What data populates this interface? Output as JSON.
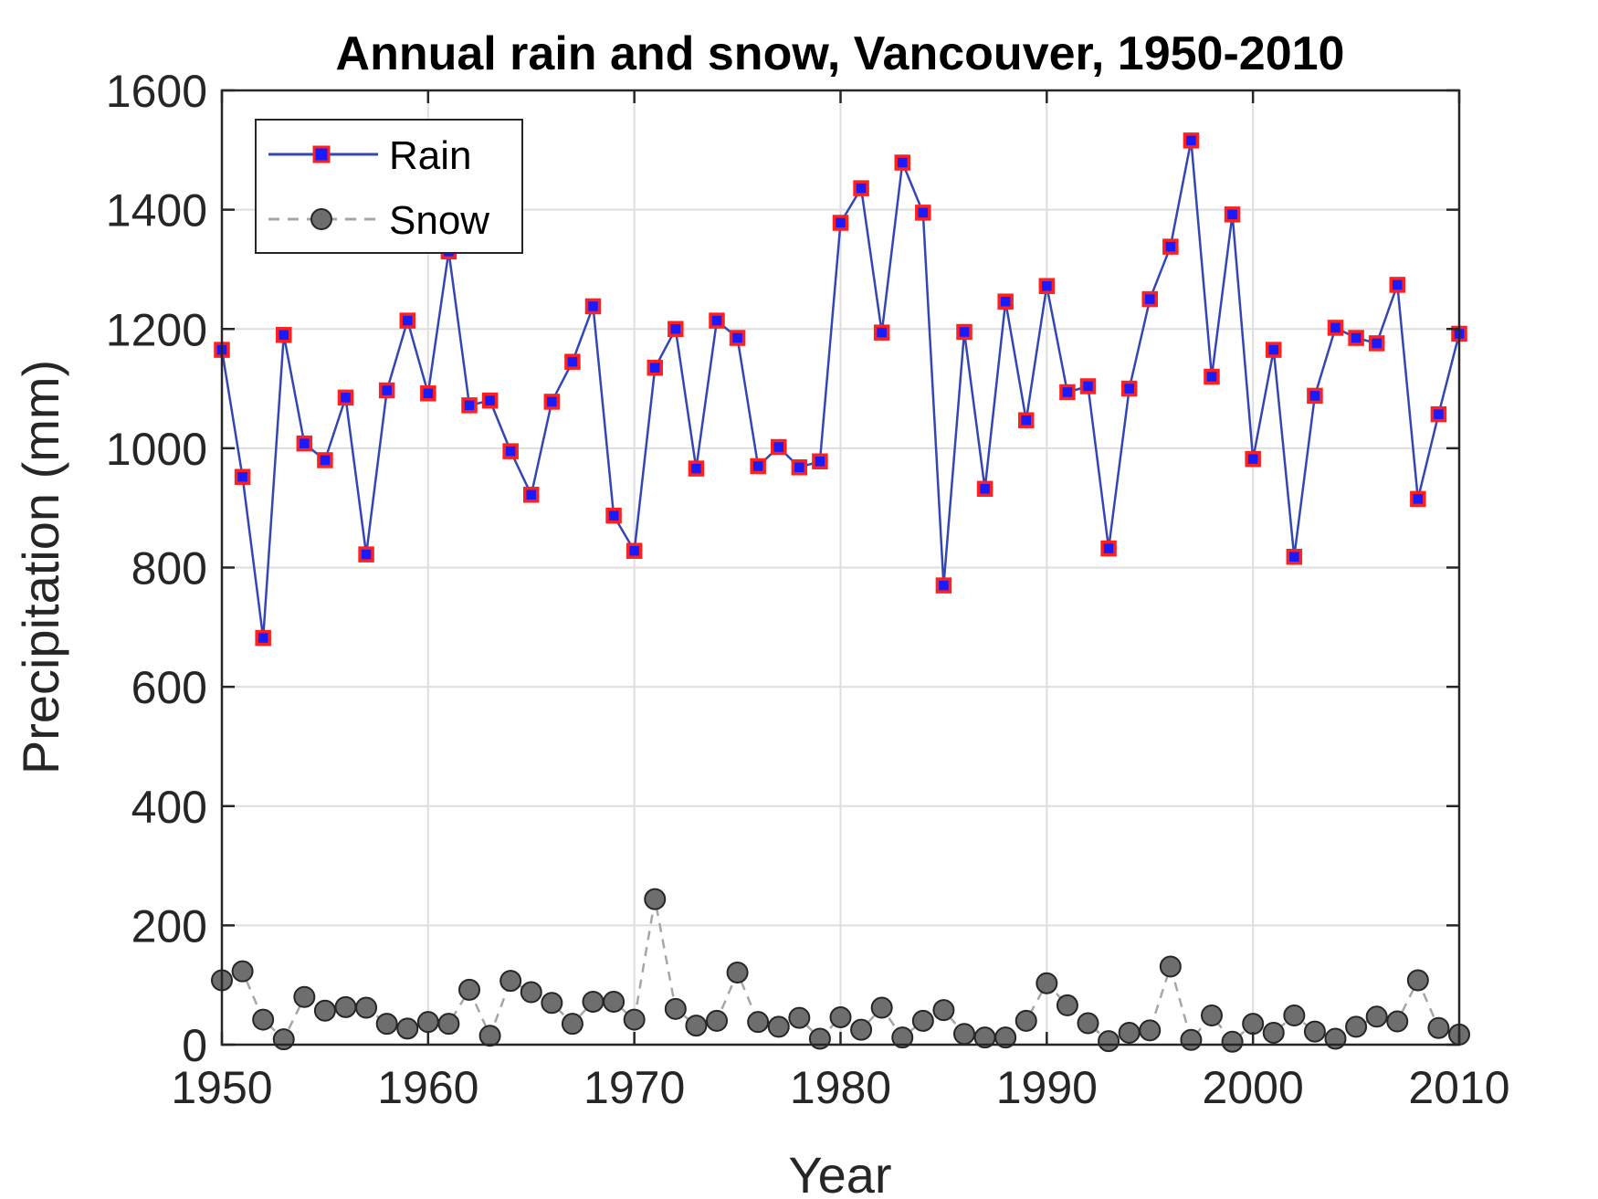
{
  "chart_data": {
    "type": "line",
    "title": "Annual rain and snow, Vancouver, 1950-2010",
    "xlabel": "Year",
    "ylabel": "Precipitation (mm)",
    "xlim": [
      1950,
      2010
    ],
    "ylim": [
      0,
      1600
    ],
    "xticks": [
      1950,
      1960,
      1970,
      1980,
      1990,
      2000,
      2010
    ],
    "yticks": [
      0,
      200,
      400,
      600,
      800,
      1000,
      1200,
      1400,
      1600
    ],
    "grid": true,
    "legend_position": "top-left",
    "x": [
      1950,
      1951,
      1952,
      1953,
      1954,
      1955,
      1956,
      1957,
      1958,
      1959,
      1960,
      1961,
      1962,
      1963,
      1964,
      1965,
      1966,
      1967,
      1968,
      1969,
      1970,
      1971,
      1972,
      1973,
      1974,
      1975,
      1976,
      1977,
      1978,
      1979,
      1980,
      1981,
      1982,
      1983,
      1984,
      1985,
      1986,
      1987,
      1988,
      1989,
      1990,
      1991,
      1992,
      1993,
      1994,
      1995,
      1996,
      1997,
      1998,
      1999,
      2000,
      2001,
      2002,
      2003,
      2004,
      2005,
      2006,
      2007,
      2008,
      2009,
      2010
    ],
    "series": [
      {
        "name": "Rain",
        "line_color": "#3346b3",
        "marker": "square",
        "marker_fill": "#1a1aff",
        "marker_edge": "#ff2020",
        "line_style": "solid",
        "values": [
          1165,
          952,
          682,
          1190,
          1008,
          980,
          1085,
          822,
          1097,
          1214,
          1092,
          1330,
          1072,
          1080,
          995,
          922,
          1078,
          1145,
          1238,
          887,
          828,
          1135,
          1200,
          966,
          1214,
          1185,
          970,
          1002,
          968,
          978,
          1378,
          1436,
          1194,
          1479,
          1395,
          770,
          1195,
          932,
          1246,
          1047,
          1272,
          1094,
          1104,
          832,
          1100,
          1250,
          1338,
          1516,
          1120,
          1392,
          982,
          1165,
          818,
          1088,
          1202,
          1185,
          1176,
          1274,
          915,
          1057,
          1192
        ]
      },
      {
        "name": "Snow",
        "line_color": "#a6a6a6",
        "marker": "circle",
        "marker_fill": "#6e6e6e",
        "marker_edge": "#262626",
        "line_style": "dashed",
        "values": [
          108,
          123,
          42,
          9,
          80,
          57,
          63,
          62,
          35,
          27,
          38,
          35,
          92,
          15,
          107,
          88,
          70,
          35,
          72,
          72,
          42,
          244,
          60,
          32,
          40,
          121,
          38,
          30,
          45,
          10,
          46,
          25,
          62,
          12,
          40,
          58,
          18,
          12,
          12,
          40,
          103,
          66,
          36,
          6,
          20,
          24,
          131,
          8,
          49,
          5,
          35,
          20,
          49,
          22,
          10,
          30,
          47,
          39,
          108,
          28,
          17
        ]
      }
    ]
  }
}
